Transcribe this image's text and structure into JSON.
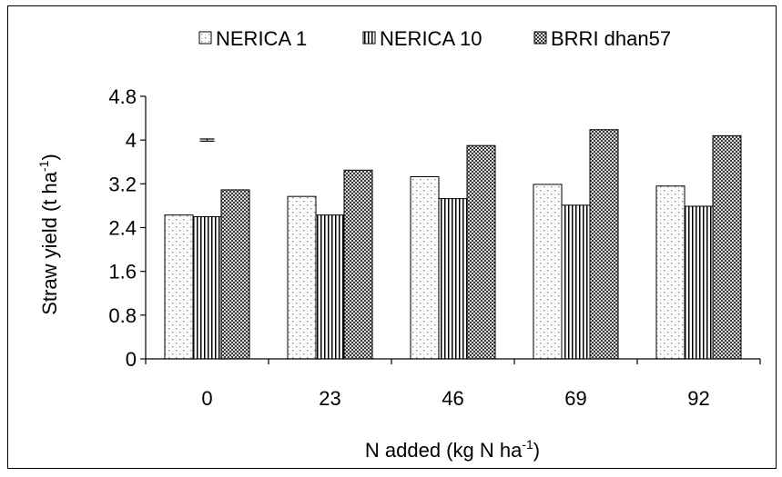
{
  "chart_data": {
    "type": "bar",
    "categories": [
      "0",
      "23",
      "46",
      "69",
      "92"
    ],
    "series": [
      {
        "name": "NERICA 1",
        "values": [
          2.63,
          2.97,
          3.33,
          3.19,
          3.16
        ],
        "pattern": "dots"
      },
      {
        "name": "NERICA 10",
        "values": [
          2.6,
          2.63,
          2.93,
          2.81,
          2.79
        ],
        "pattern": "vlines"
      },
      {
        "name": "BRRI dhan57",
        "values": [
          3.09,
          3.45,
          3.9,
          4.19,
          4.08
        ],
        "pattern": "checker"
      }
    ],
    "xlabel_main": "N added (kg N ha",
    "xlabel_sup": "-1",
    "xlabel_end": ")",
    "ylabel_main": "Straw yield (t ha",
    "ylabel_sup": "-1",
    "ylabel_end": ")",
    "ylim": [
      0,
      4.8
    ],
    "yticks": [
      "0",
      "0.8",
      "1.6",
      "2.4",
      "3.2",
      "4",
      "4.8"
    ],
    "error_bar": {
      "category": "0",
      "value": 4.0,
      "half_width": 0.02
    },
    "legend_position": "top",
    "grid": false
  }
}
